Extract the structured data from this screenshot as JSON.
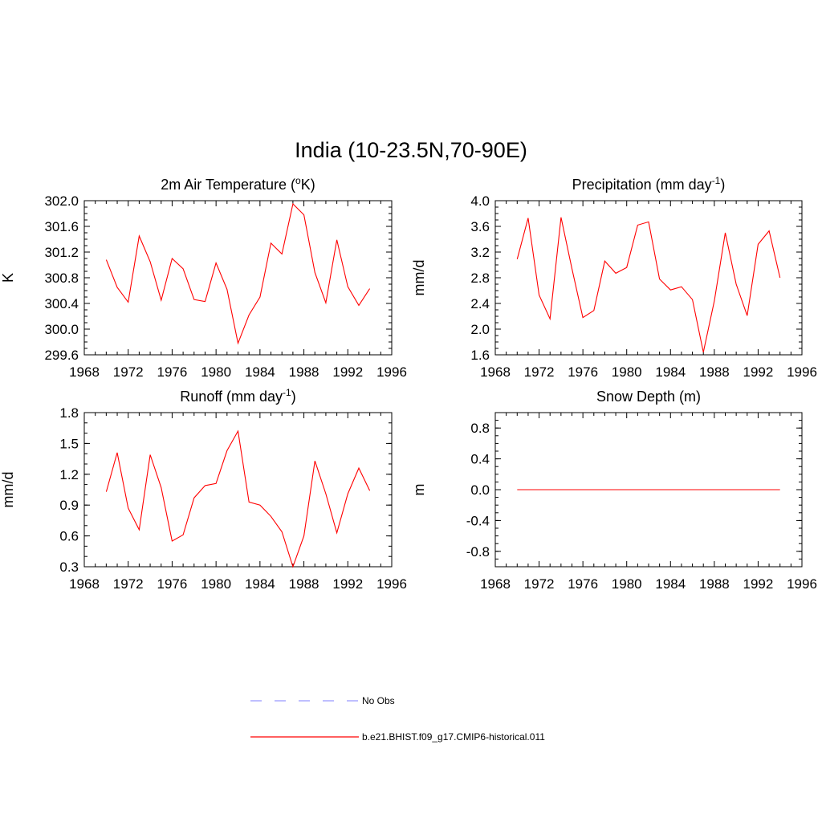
{
  "figure": {
    "title": "India (10-23.5N,70-90E)"
  },
  "legend": {
    "entries": [
      {
        "label": "No Obs",
        "color": "#9999ff",
        "style": "dashed"
      },
      {
        "label": "b.e21.BHIST.f09_g17.CMIP6-historical.011",
        "color": "#ff0000",
        "style": "solid"
      }
    ]
  },
  "chart_data": [
    {
      "type": "line",
      "title": "2m Air Temperature (",
      "title_sup": "o",
      "title_suffix": "K)",
      "ylabel": "K",
      "xlim": [
        1968,
        1996
      ],
      "ylim": [
        299.6,
        302.0
      ],
      "xticks": [
        1968,
        1972,
        1976,
        1980,
        1984,
        1988,
        1992,
        1996
      ],
      "yticks": [
        "299.6",
        "300.0",
        "300.4",
        "300.8",
        "301.2",
        "301.6",
        "302.0"
      ],
      "yminor": 0.1,
      "color": "#ff0000",
      "x": [
        1970,
        1971,
        1972,
        1973,
        1974,
        1975,
        1976,
        1977,
        1978,
        1979,
        1980,
        1981,
        1982,
        1983,
        1984,
        1985,
        1986,
        1987,
        1988,
        1989,
        1990,
        1991,
        1992,
        1993,
        1994
      ],
      "series": [
        {
          "values": [
            301.08,
            300.65,
            300.42,
            301.45,
            301.05,
            300.45,
            301.1,
            300.94,
            300.46,
            300.43,
            301.03,
            300.62,
            299.78,
            300.22,
            300.5,
            301.34,
            301.17,
            301.95,
            301.78,
            300.88,
            300.41,
            301.39,
            300.66,
            300.37,
            300.63
          ]
        }
      ]
    },
    {
      "type": "line",
      "title": "Precipitation (mm day",
      "title_sup": "-1",
      "title_suffix": ")",
      "ylabel": "mm/d",
      "xlim": [
        1968,
        1996
      ],
      "ylim": [
        1.6,
        4.0
      ],
      "xticks": [
        1968,
        1972,
        1976,
        1980,
        1984,
        1988,
        1992,
        1996
      ],
      "yticks": [
        "1.6",
        "2.0",
        "2.4",
        "2.8",
        "3.2",
        "3.6",
        "4.0"
      ],
      "yminor": 0.1,
      "color": "#ff0000",
      "x": [
        1970,
        1971,
        1972,
        1973,
        1974,
        1975,
        1976,
        1977,
        1978,
        1979,
        1980,
        1981,
        1982,
        1983,
        1984,
        1985,
        1986,
        1987,
        1988,
        1989,
        1990,
        1991,
        1992,
        1993,
        1994
      ],
      "series": [
        {
          "values": [
            3.09,
            3.73,
            2.53,
            2.16,
            3.74,
            2.94,
            2.18,
            2.29,
            3.06,
            2.87,
            2.96,
            3.62,
            3.67,
            2.78,
            2.61,
            2.66,
            2.46,
            1.64,
            2.44,
            3.5,
            2.7,
            2.21,
            3.32,
            3.53,
            2.8
          ]
        }
      ]
    },
    {
      "type": "line",
      "title": "Runoff (mm day",
      "title_sup": "-1",
      "title_suffix": ")",
      "ylabel": "mm/d",
      "xlim": [
        1968,
        1996
      ],
      "ylim": [
        0.3,
        1.8
      ],
      "xticks": [
        1968,
        1972,
        1976,
        1980,
        1984,
        1988,
        1992,
        1996
      ],
      "yticks": [
        "0.3",
        "0.6",
        "0.9",
        "1.2",
        "1.5",
        "1.8"
      ],
      "yminor": 0.1,
      "color": "#ff0000",
      "x": [
        1970,
        1971,
        1972,
        1973,
        1974,
        1975,
        1976,
        1977,
        1978,
        1979,
        1980,
        1981,
        1982,
        1983,
        1984,
        1985,
        1986,
        1987,
        1988,
        1989,
        1990,
        1991,
        1992,
        1993,
        1994
      ],
      "series": [
        {
          "values": [
            1.03,
            1.41,
            0.87,
            0.66,
            1.39,
            1.07,
            0.55,
            0.61,
            0.97,
            1.09,
            1.11,
            1.43,
            1.62,
            0.93,
            0.9,
            0.79,
            0.64,
            0.3,
            0.6,
            1.33,
            1.01,
            0.63,
            1.01,
            1.26,
            1.04
          ]
        }
      ]
    },
    {
      "type": "line",
      "title": "Snow Depth (m)",
      "title_sup": "",
      "title_suffix": "",
      "ylabel": "m",
      "xlim": [
        1968,
        1996
      ],
      "ylim": [
        -1.0,
        1.0
      ],
      "xticks": [
        1968,
        1972,
        1976,
        1980,
        1984,
        1988,
        1992,
        1996
      ],
      "yticks": [
        "-0.8",
        "-0.4",
        "0.0",
        "0.4",
        "0.8"
      ],
      "ytickvals": [
        -0.8,
        -0.4,
        0.0,
        0.4,
        0.8
      ],
      "yminor": 0.1,
      "color": "#ff0000",
      "x": [
        1970,
        1971,
        1972,
        1973,
        1974,
        1975,
        1976,
        1977,
        1978,
        1979,
        1980,
        1981,
        1982,
        1983,
        1984,
        1985,
        1986,
        1987,
        1988,
        1989,
        1990,
        1991,
        1992,
        1993,
        1994
      ],
      "series": [
        {
          "values": [
            0,
            0,
            0,
            0,
            0,
            0,
            0,
            0,
            0,
            0,
            0,
            0,
            0,
            0,
            0,
            0,
            0,
            0,
            0,
            0,
            0,
            0,
            0,
            0,
            0
          ]
        }
      ]
    }
  ]
}
